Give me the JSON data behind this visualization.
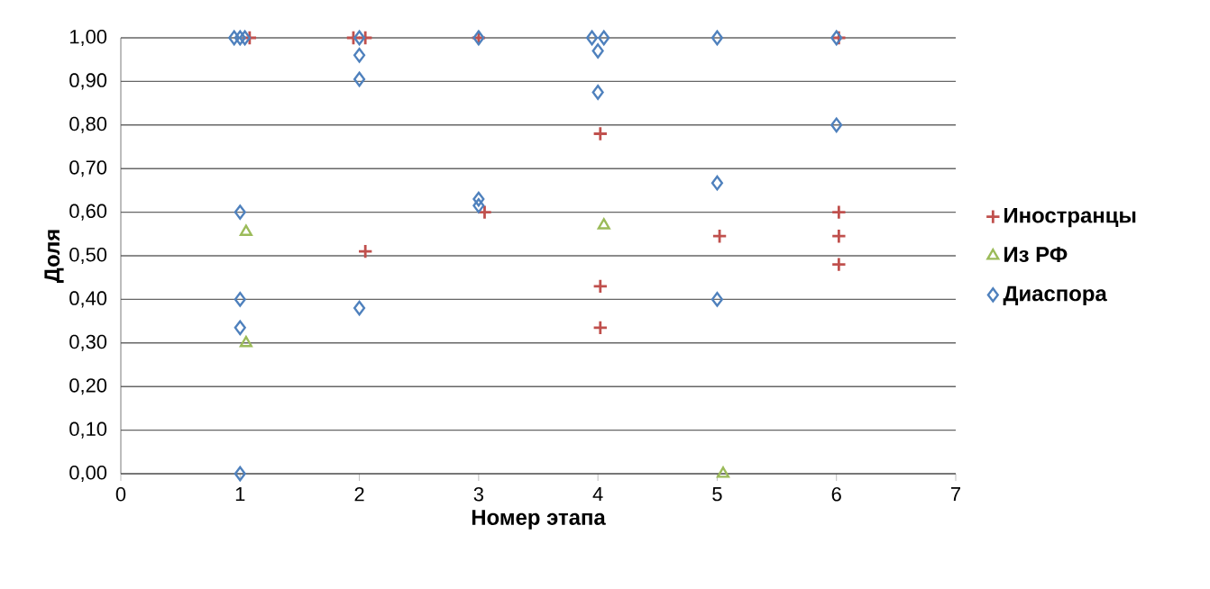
{
  "chart_data": {
    "type": "scatter",
    "xlabel": "Номер этапа",
    "ylabel": "Доля",
    "xlim": [
      0,
      7
    ],
    "xticks": [
      0,
      1,
      2,
      3,
      4,
      5,
      6,
      7
    ],
    "ylim": [
      0,
      1
    ],
    "yticks": [
      {
        "value": 0,
        "label": "0,00"
      },
      {
        "value": 0.1,
        "label": "0,10"
      },
      {
        "value": 0.2,
        "label": "0,20"
      },
      {
        "value": 0.3,
        "label": "0,30"
      },
      {
        "value": 0.4,
        "label": "0,40"
      },
      {
        "value": 0.5,
        "label": "0,50"
      },
      {
        "value": 0.6,
        "label": "0,60"
      },
      {
        "value": 0.7,
        "label": "0,70"
      },
      {
        "value": 0.8,
        "label": "0,80"
      },
      {
        "value": 0.9,
        "label": "0,90"
      },
      {
        "value": 1,
        "label": "1,00"
      }
    ],
    "grid": "y",
    "legend": "right",
    "series": [
      {
        "name": "Иностранцы",
        "color": "#c0504d",
        "marker": "cross",
        "x": [
          1.08,
          1.95,
          2.05,
          2.05,
          3.0,
          3.05,
          4.02,
          4.02,
          4.02,
          5.02,
          6.02,
          6.02,
          6.02,
          6.02
        ],
        "values": [
          1.0,
          1.0,
          1.0,
          0.51,
          1.0,
          0.6,
          0.78,
          0.43,
          0.335,
          0.545,
          1.0,
          0.6,
          0.545,
          0.48
        ]
      },
      {
        "name": "Из РФ",
        "color": "#9bbb59",
        "marker": "triangle",
        "x": [
          1.05,
          1.05,
          4.05,
          5.05
        ],
        "values": [
          0.555,
          0.3,
          0.57,
          0.0
        ]
      },
      {
        "name": "Диаспора",
        "color": "#4f81bd",
        "marker": "diamond",
        "x": [
          0.95,
          1.0,
          1.04,
          1.0,
          1.0,
          1.0,
          1.0,
          2.0,
          2.0,
          2.0,
          2.0,
          3.0,
          3.0,
          3.0,
          3.95,
          4.05,
          4.0,
          4.0,
          5.0,
          5.0,
          5.0,
          6.0,
          6.0
        ],
        "values": [
          1.0,
          1.0,
          1.0,
          0.6,
          0.4,
          0.335,
          0.0,
          1.0,
          0.96,
          0.905,
          0.38,
          1.0,
          0.63,
          0.615,
          1.0,
          1.0,
          0.97,
          0.875,
          1.0,
          0.667,
          0.4,
          1.0,
          0.8
        ]
      }
    ]
  }
}
